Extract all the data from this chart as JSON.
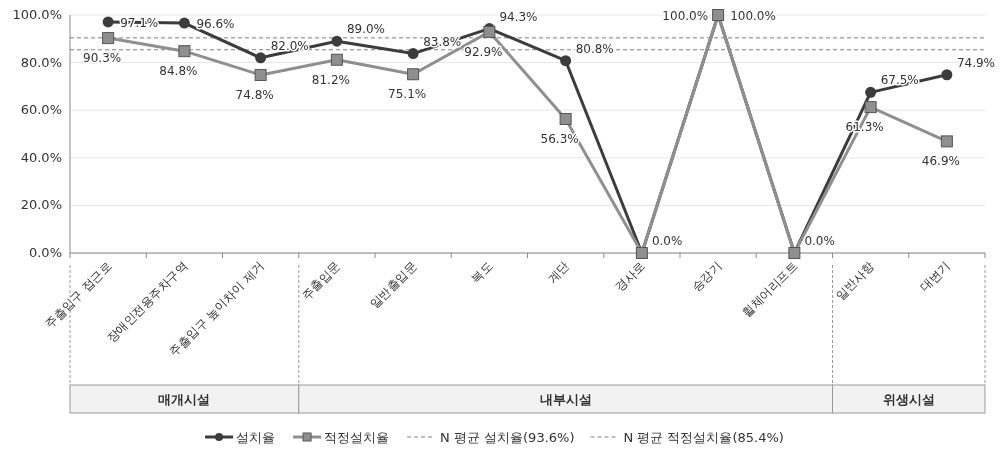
{
  "chart_data": {
    "type": "line",
    "categories": [
      "주출입구 접근로",
      "장애인전용주차구역",
      "주출입구 높이차이 제거",
      "주출입문",
      "일반출입문",
      "복도",
      "계단",
      "경사로",
      "승강기",
      "휠체어리프트",
      "일반사항",
      "대변기"
    ],
    "series": [
      {
        "name": "설치율",
        "color": "#3c3c3c",
        "marker": "circle",
        "values": [
          97.1,
          96.6,
          82.0,
          89.0,
          83.8,
          94.3,
          80.8,
          0.0,
          100.0,
          0.0,
          67.5,
          74.9
        ],
        "value_labels": [
          "97.1%",
          "96.6%",
          "82.0%",
          "89.0%",
          "83.8%",
          "94.3%",
          "80.8%",
          "0.0%",
          "100.0%",
          "0.0%",
          "67.5%",
          "74.9%"
        ]
      },
      {
        "name": "적정설치율",
        "color": "#8f8f8f",
        "marker": "square",
        "values": [
          90.3,
          84.8,
          74.8,
          81.2,
          75.1,
          92.9,
          56.3,
          0.0,
          100.0,
          0.0,
          61.3,
          46.9
        ],
        "value_labels": [
          "90.3%",
          "84.8%",
          "74.8%",
          "81.2%",
          "75.1%",
          "92.9%",
          "56.3%",
          null,
          "100.0%",
          null,
          "61.3%",
          "46.9%"
        ]
      }
    ],
    "ylim": [
      0,
      100
    ],
    "yticks": [
      {
        "value": 0,
        "label": "0.0%"
      },
      {
        "value": 20,
        "label": "20.0%"
      },
      {
        "value": 40,
        "label": "40.0%"
      },
      {
        "value": 60,
        "label": "60.0%"
      },
      {
        "value": 80,
        "label": "80.0%"
      },
      {
        "value": 100,
        "label": "100.0%"
      }
    ],
    "ref_lines": [
      {
        "axis": "y",
        "value": 90.4,
        "label": "N 평균 설치율(93.6%)",
        "color": "#808080",
        "line_style": "dashed"
      },
      {
        "axis": "y",
        "value": 85.4,
        "label": "N 평균 적정설치율(85.4%)",
        "color": "#808080",
        "line_style": "dashed"
      }
    ],
    "annotations": [
      "매개시설",
      "내부시설",
      "위생시설"
    ],
    "grid": "y",
    "legend": "bottom",
    "line_style": "solid"
  }
}
